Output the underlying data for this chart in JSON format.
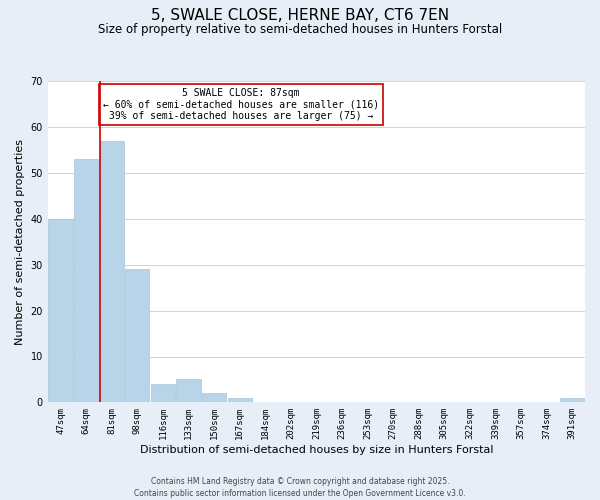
{
  "title": "5, SWALE CLOSE, HERNE BAY, CT6 7EN",
  "subtitle": "Size of property relative to semi-detached houses in Hunters Forstal",
  "xlabel": "Distribution of semi-detached houses by size in Hunters Forstal",
  "ylabel": "Number of semi-detached properties",
  "categories": [
    "47sqm",
    "64sqm",
    "81sqm",
    "98sqm",
    "116sqm",
    "133sqm",
    "150sqm",
    "167sqm",
    "184sqm",
    "202sqm",
    "219sqm",
    "236sqm",
    "253sqm",
    "270sqm",
    "288sqm",
    "305sqm",
    "322sqm",
    "339sqm",
    "357sqm",
    "374sqm",
    "391sqm"
  ],
  "values": [
    40,
    53,
    57,
    29,
    4,
    5,
    2,
    1,
    0,
    0,
    0,
    0,
    0,
    0,
    0,
    0,
    0,
    0,
    0,
    0,
    1
  ],
  "bar_color": "#b8d4e8",
  "bar_edge_color": "#a8c4d8",
  "property_line_color": "#cc0000",
  "annotation_title": "5 SWALE CLOSE: 87sqm",
  "annotation_line1": "← 60% of semi-detached houses are smaller (116)",
  "annotation_line2": "39% of semi-detached houses are larger (75) →",
  "annotation_box_color": "#cc0000",
  "annotation_bg": "#ffffff",
  "ylim": [
    0,
    70
  ],
  "yticks": [
    0,
    10,
    20,
    30,
    40,
    50,
    60,
    70
  ],
  "background_color": "#e8eef8",
  "plot_bg_color": "#ffffff",
  "footer1": "Contains HM Land Registry data © Crown copyright and database right 2025.",
  "footer2": "Contains public sector information licensed under the Open Government Licence v3.0.",
  "grid_color": "#c8d4e8",
  "title_fontsize": 11,
  "subtitle_fontsize": 8.5,
  "tick_fontsize": 6.5,
  "ylabel_fontsize": 8,
  "xlabel_fontsize": 8,
  "footer_fontsize": 5.5
}
